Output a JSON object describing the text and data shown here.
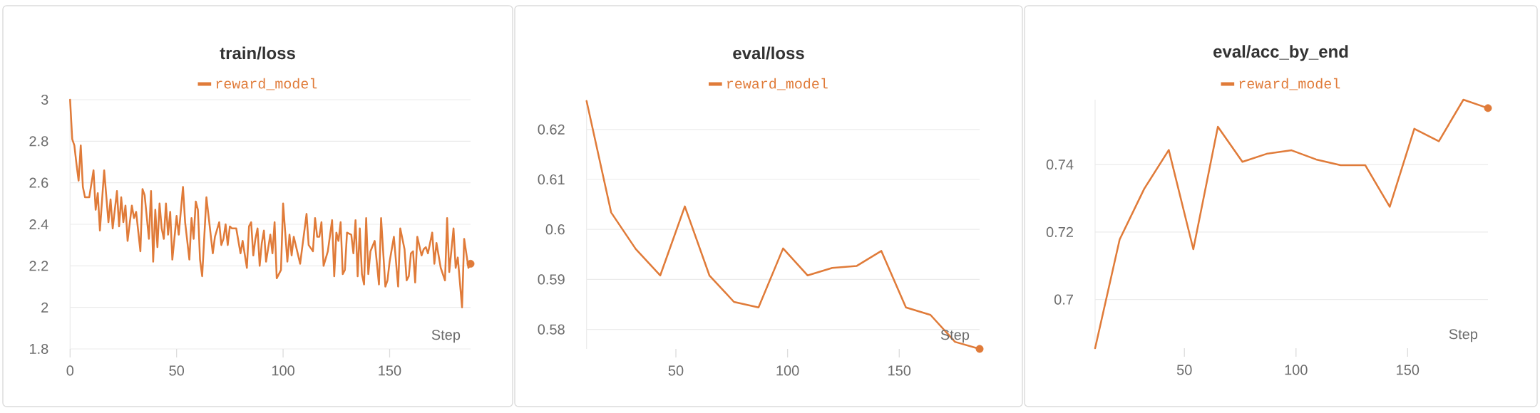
{
  "chart_data": [
    {
      "type": "line",
      "title": "train/loss",
      "xlabel": "Step",
      "legend": "top",
      "grid": "y",
      "x": [
        0,
        1,
        2,
        3,
        4,
        5,
        6,
        7,
        8,
        9,
        11,
        12,
        13,
        14,
        16,
        18,
        19,
        20,
        22,
        23,
        24,
        25,
        26,
        27,
        29,
        30,
        31,
        33,
        34,
        35,
        37,
        38,
        39,
        40,
        41,
        42,
        43,
        44,
        45,
        46,
        47,
        48,
        50,
        51,
        53,
        54,
        56,
        57,
        58,
        59,
        60,
        61,
        62,
        64,
        67,
        68,
        70,
        71,
        72,
        73,
        74,
        75,
        76,
        78,
        80,
        81,
        83,
        84,
        85,
        86,
        87,
        88,
        89,
        90,
        91,
        92,
        94,
        95,
        96,
        97,
        99,
        100,
        102,
        103,
        104,
        105,
        108,
        111,
        112,
        114,
        115,
        116,
        117,
        118,
        119,
        121,
        123,
        124,
        125,
        126,
        127,
        128,
        129,
        130,
        132,
        133,
        134,
        135,
        136,
        137,
        138,
        139,
        140,
        141,
        143,
        145,
        146,
        148,
        149,
        150,
        152,
        154,
        155,
        157,
        158,
        159,
        160,
        161,
        162,
        163,
        165,
        166,
        167,
        168,
        170,
        171,
        172,
        174,
        176,
        177,
        178,
        180,
        181,
        182,
        184,
        185,
        187,
        188
      ],
      "series": [
        {
          "name": "reward_model",
          "color": "#e07b39",
          "values": [
            3.0,
            2.81,
            2.78,
            2.69,
            2.61,
            2.78,
            2.58,
            2.53,
            2.53,
            2.53,
            2.66,
            2.47,
            2.55,
            2.37,
            2.66,
            2.41,
            2.52,
            2.38,
            2.56,
            2.39,
            2.53,
            2.41,
            2.49,
            2.32,
            2.49,
            2.43,
            2.46,
            2.27,
            2.57,
            2.54,
            2.33,
            2.56,
            2.22,
            2.47,
            2.29,
            2.5,
            2.38,
            2.33,
            2.5,
            2.35,
            2.46,
            2.23,
            2.44,
            2.35,
            2.58,
            2.41,
            2.23,
            2.43,
            2.33,
            2.51,
            2.47,
            2.23,
            2.15,
            2.53,
            2.26,
            2.34,
            2.41,
            2.3,
            2.33,
            2.4,
            2.3,
            2.39,
            2.38,
            2.38,
            2.26,
            2.32,
            2.19,
            2.39,
            2.41,
            2.25,
            2.33,
            2.38,
            2.2,
            2.31,
            2.37,
            2.22,
            2.35,
            2.26,
            2.41,
            2.14,
            2.18,
            2.5,
            2.22,
            2.35,
            2.25,
            2.34,
            2.21,
            2.45,
            2.3,
            2.27,
            2.43,
            2.34,
            2.34,
            2.41,
            2.2,
            2.27,
            2.42,
            2.15,
            2.36,
            2.32,
            2.41,
            2.16,
            2.18,
            2.36,
            2.35,
            2.26,
            2.42,
            2.15,
            2.38,
            2.16,
            2.11,
            2.43,
            2.16,
            2.27,
            2.32,
            2.11,
            2.43,
            2.1,
            2.13,
            2.22,
            2.34,
            2.1,
            2.38,
            2.28,
            2.13,
            2.15,
            2.26,
            2.27,
            2.12,
            2.34,
            2.25,
            2.28,
            2.29,
            2.26,
            2.36,
            2.21,
            2.31,
            2.19,
            2.13,
            2.43,
            2.17,
            2.38,
            2.19,
            2.24,
            2.0,
            2.33,
            2.19,
            2.21
          ]
        },
        {
          "type": "scatter",
          "marker": "circle",
          "color": "#e07b39",
          "values": [
            null,
            null,
            null,
            null,
            null,
            null,
            null,
            null,
            null,
            null,
            null,
            null,
            null,
            null,
            null,
            null,
            null,
            null,
            null,
            null,
            null,
            null,
            null,
            null,
            null,
            null,
            null,
            null,
            null,
            null,
            null,
            null,
            null,
            null,
            null,
            null,
            null,
            null,
            null,
            null,
            null,
            null,
            null,
            null,
            null,
            null,
            null,
            null,
            null,
            null,
            null,
            null,
            null,
            null,
            null,
            null,
            null,
            null,
            null,
            null,
            null,
            null,
            null,
            null,
            null,
            null,
            null,
            null,
            null,
            null,
            null,
            null,
            null,
            null,
            null,
            null,
            null,
            null,
            null,
            null,
            null,
            null,
            null,
            null,
            null,
            null,
            null,
            null,
            null,
            null,
            null,
            null,
            null,
            null,
            null,
            null,
            null,
            null,
            null,
            null,
            null,
            null,
            null,
            null,
            null,
            null,
            null,
            null,
            null,
            null,
            null,
            null,
            null,
            null,
            null,
            null,
            null,
            null,
            null,
            null,
            null,
            null,
            null,
            null,
            null,
            null,
            null,
            null,
            null,
            null,
            null,
            null,
            null,
            null,
            null,
            null,
            null,
            null,
            null,
            null,
            null,
            null,
            null,
            null,
            null,
            null,
            null,
            2.21
          ]
        }
      ],
      "xlim": [
        0,
        188
      ],
      "ylim": [
        1.8,
        3
      ],
      "xticks": [
        0,
        50,
        100,
        150
      ],
      "yticks": [
        1.8,
        2,
        2.2,
        2.4,
        2.6,
        2.8,
        3
      ]
    },
    {
      "type": "line",
      "title": "eval/loss",
      "xlabel": "Step",
      "legend": "top",
      "grid": "y",
      "x": [
        10,
        21,
        32,
        43,
        54,
        65,
        76,
        87,
        98,
        109,
        120,
        131,
        142,
        153,
        164,
        175,
        186
      ],
      "series": [
        {
          "name": "reward_model",
          "color": "#e07b39",
          "values": [
            0.6257,
            0.6034,
            0.5961,
            0.5908,
            0.6046,
            0.5908,
            0.5855,
            0.5844,
            0.5962,
            0.5908,
            0.5923,
            0.5927,
            0.5957,
            0.5844,
            0.5829,
            0.5775,
            0.5761
          ]
        },
        {
          "type": "scatter",
          "marker": "circle",
          "color": "#e07b39",
          "values": [
            null,
            null,
            null,
            null,
            null,
            null,
            null,
            null,
            null,
            null,
            null,
            null,
            null,
            null,
            null,
            null,
            0.5761
          ]
        }
      ],
      "xlim": [
        10,
        186
      ],
      "ylim": [
        0.5761,
        0.6257
      ],
      "xticks": [
        50,
        100,
        150
      ],
      "yticks": [
        0.58,
        0.59,
        0.6,
        0.61,
        0.62
      ]
    },
    {
      "type": "line",
      "title": "eval/acc_by_end",
      "xlabel": "Step",
      "legend": "top",
      "grid": "y",
      "x": [
        10,
        21,
        32,
        43,
        54,
        65,
        76,
        87,
        98,
        109,
        120,
        131,
        142,
        153,
        164,
        175,
        186
      ],
      "series": [
        {
          "name": "reward_model",
          "color": "#e07b39",
          "values": [
            0.6856,
            0.7178,
            0.7328,
            0.7443,
            0.7149,
            0.7512,
            0.7408,
            0.7432,
            0.7442,
            0.7415,
            0.7398,
            0.7398,
            0.7275,
            0.7506,
            0.7469,
            0.7592,
            0.7567
          ]
        },
        {
          "type": "scatter",
          "marker": "circle",
          "color": "#e07b39",
          "values": [
            null,
            null,
            null,
            null,
            null,
            null,
            null,
            null,
            null,
            null,
            null,
            null,
            null,
            null,
            null,
            null,
            0.7567
          ]
        }
      ],
      "xlim": [
        10,
        186
      ],
      "ylim": [
        0.6856,
        0.7592
      ],
      "xticks": [
        50,
        100,
        150
      ],
      "yticks": [
        0.7,
        0.72,
        0.74
      ]
    }
  ]
}
